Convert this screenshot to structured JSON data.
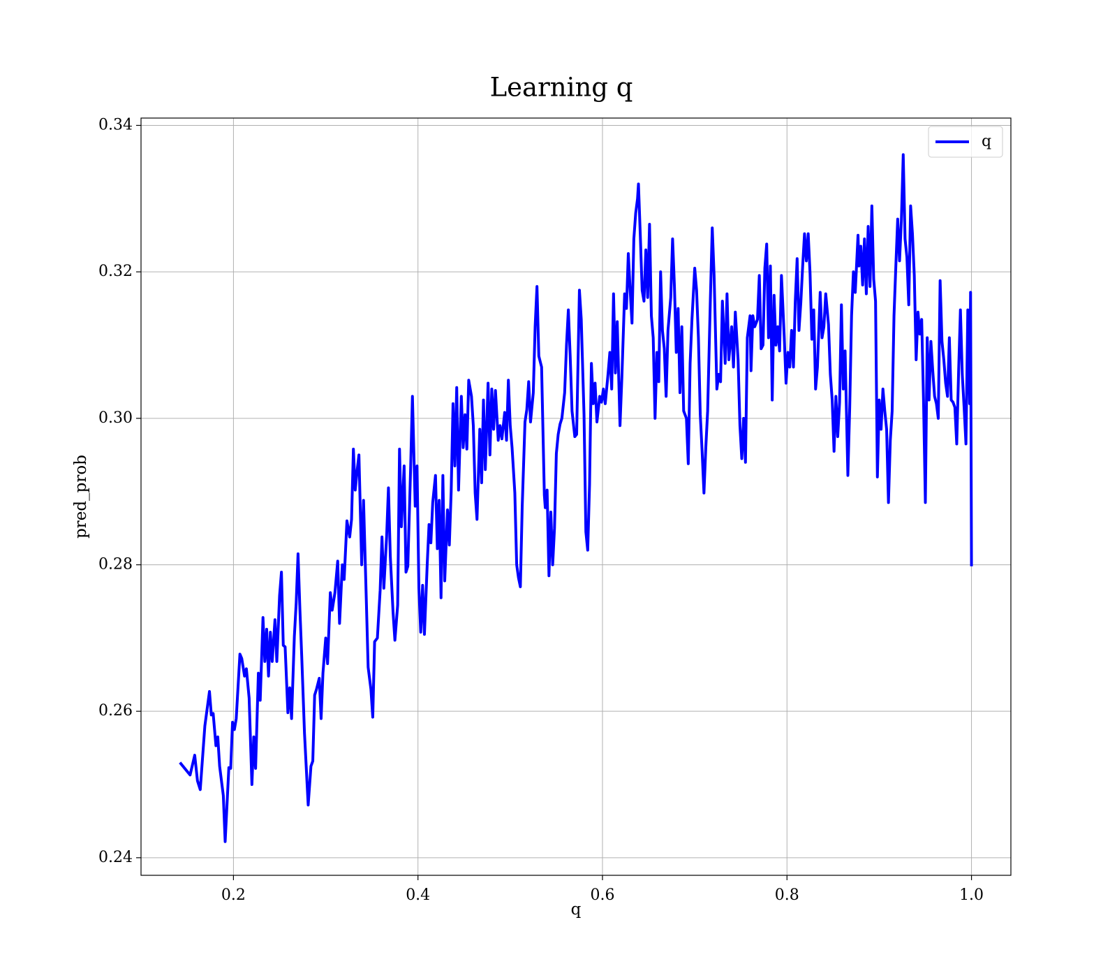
{
  "chart_data": {
    "type": "line",
    "title": "Learning q",
    "xlabel": "q",
    "ylabel": "pred_prob",
    "xlim": [
      0.0998,
      1.0427
    ],
    "ylim": [
      0.2376,
      0.341
    ],
    "xticks": [
      0.2,
      0.4,
      0.6,
      0.8,
      {
        "value": 1.0,
        "label": "1.0"
      }
    ],
    "yticks": [
      0.24,
      0.26,
      0.28,
      {
        "value": 0.3,
        "label": "0.30"
      },
      0.32,
      0.34
    ],
    "grid": true,
    "legend": "upper right",
    "x": [
      0.142,
      0.153,
      0.158,
      0.161,
      0.164,
      0.169,
      0.174,
      0.176,
      0.178,
      0.181,
      0.183,
      0.185,
      0.189,
      0.191,
      0.195,
      0.197,
      0.199,
      0.201,
      0.203,
      0.207,
      0.209,
      0.212,
      0.214,
      0.217,
      0.22,
      0.222,
      0.224,
      0.227,
      0.229,
      0.232,
      0.234,
      0.236,
      0.238,
      0.24,
      0.242,
      0.245,
      0.247,
      0.25,
      0.252,
      0.254,
      0.256,
      0.259,
      0.261,
      0.263,
      0.266,
      0.268,
      0.27,
      0.272,
      0.274,
      0.277,
      0.281,
      0.284,
      0.286,
      0.288,
      0.29,
      0.293,
      0.295,
      0.297,
      0.3,
      0.302,
      0.305,
      0.307,
      0.31,
      0.313,
      0.315,
      0.318,
      0.32,
      0.323,
      0.326,
      0.328,
      0.33,
      0.332,
      0.334,
      0.336,
      0.339,
      0.341,
      0.344,
      0.346,
      0.349,
      0.351,
      0.353,
      0.356,
      0.359,
      0.361,
      0.363,
      0.366,
      0.368,
      0.37,
      0.373,
      0.375,
      0.378,
      0.38,
      0.382,
      0.385,
      0.387,
      0.389,
      0.392,
      0.394,
      0.397,
      0.399,
      0.401,
      0.403,
      0.405,
      0.407,
      0.41,
      0.412,
      0.414,
      0.416,
      0.419,
      0.421,
      0.423,
      0.425,
      0.427,
      0.429,
      0.432,
      0.434,
      0.436,
      0.438,
      0.44,
      0.442,
      0.444,
      0.447,
      0.449,
      0.451,
      0.453,
      0.455,
      0.458,
      0.46,
      0.462,
      0.464,
      0.467,
      0.469,
      0.471,
      0.473,
      0.476,
      0.478,
      0.48,
      0.482,
      0.484,
      0.487,
      0.489,
      0.491,
      0.494,
      0.496,
      0.498,
      0.5,
      0.502,
      0.505,
      0.507,
      0.509,
      0.511,
      0.513,
      0.516,
      0.518,
      0.52,
      0.522,
      0.525,
      0.527,
      0.529,
      0.531,
      0.534,
      0.537,
      0.538,
      0.54,
      0.542,
      0.544,
      0.546,
      0.548,
      0.55,
      0.552,
      0.554,
      0.556,
      0.559,
      0.561,
      0.563,
      0.565,
      0.567,
      0.57,
      0.572,
      0.575,
      0.577,
      0.58,
      0.582,
      0.584,
      0.586,
      0.588,
      0.59,
      0.592,
      0.594,
      0.597,
      0.599,
      0.601,
      0.603,
      0.606,
      0.608,
      0.61,
      0.612,
      0.614,
      0.616,
      0.619,
      0.621,
      0.624,
      0.626,
      0.628,
      0.63,
      0.632,
      0.634,
      0.636,
      0.638,
      0.639,
      0.641,
      0.643,
      0.645,
      0.647,
      0.649,
      0.651,
      0.653,
      0.655,
      0.657,
      0.659,
      0.661,
      0.663,
      0.665,
      0.667,
      0.669,
      0.671,
      0.674,
      0.676,
      0.678,
      0.68,
      0.682,
      0.684,
      0.686,
      0.688,
      0.691,
      0.693,
      0.695,
      0.697,
      0.7,
      0.702,
      0.704,
      0.706,
      0.708,
      0.71,
      0.712,
      0.714,
      0.717,
      0.719,
      0.721,
      0.724,
      0.726,
      0.728,
      0.73,
      0.733,
      0.735,
      0.737,
      0.74,
      0.742,
      0.744,
      0.747,
      0.749,
      0.751,
      0.753,
      0.755,
      0.757,
      0.76,
      0.761,
      0.763,
      0.765,
      0.768,
      0.77,
      0.772,
      0.774,
      0.776,
      0.778,
      0.78,
      0.782,
      0.784,
      0.786,
      0.788,
      0.79,
      0.792,
      0.794,
      0.797,
      0.799,
      0.801,
      0.803,
      0.805,
      0.807,
      0.809,
      0.811,
      0.813,
      0.815,
      0.817,
      0.819,
      0.821,
      0.823,
      0.825,
      0.827,
      0.829,
      0.831,
      0.833,
      0.836,
      0.838,
      0.84,
      0.842,
      0.845,
      0.847,
      0.849,
      0.851,
      0.853,
      0.855,
      0.857,
      0.859,
      0.861,
      0.863,
      0.866,
      0.868,
      0.87,
      0.872,
      0.874,
      0.877,
      0.878,
      0.88,
      0.882,
      0.884,
      0.886,
      0.888,
      0.89,
      0.892,
      0.894,
      0.896,
      0.898,
      0.9,
      0.902,
      0.904,
      0.906,
      0.908,
      0.91,
      0.912,
      0.914,
      0.916,
      0.918,
      0.92,
      0.922,
      0.924,
      0.926,
      0.928,
      0.93,
      0.932,
      0.934,
      0.936,
      0.938,
      0.94,
      0.942,
      0.944,
      0.946,
      0.948,
      0.95,
      0.952,
      0.954,
      0.956,
      0.958,
      0.96,
      0.962,
      0.964,
      0.966,
      0.968,
      0.97,
      0.972,
      0.974,
      0.976,
      0.978,
      0.98,
      0.982,
      0.984,
      0.986,
      0.988,
      0.99,
      0.992,
      0.994,
      0.996,
      0.998,
      0.999,
      1.0
    ],
    "series": [
      {
        "name": "q",
        "color": "#0000ff",
        "values": [
          0.253,
          0.2513,
          0.254,
          0.2505,
          0.2493,
          0.258,
          0.2627,
          0.2595,
          0.2597,
          0.2553,
          0.2565,
          0.2525,
          0.2485,
          0.2422,
          0.2523,
          0.2522,
          0.2585,
          0.2575,
          0.259,
          0.2678,
          0.2672,
          0.2648,
          0.2658,
          0.2618,
          0.25,
          0.2565,
          0.2522,
          0.2652,
          0.2615,
          0.2728,
          0.2668,
          0.2712,
          0.2648,
          0.2708,
          0.2668,
          0.2725,
          0.2668,
          0.2758,
          0.279,
          0.269,
          0.2688,
          0.2598,
          0.2632,
          0.259,
          0.2702,
          0.2748,
          0.2815,
          0.274,
          0.2675,
          0.257,
          0.2472,
          0.2525,
          0.2532,
          0.2622,
          0.263,
          0.2645,
          0.259,
          0.2652,
          0.27,
          0.2665,
          0.2762,
          0.2738,
          0.2762,
          0.2805,
          0.272,
          0.28,
          0.278,
          0.286,
          0.2838,
          0.2862,
          0.2958,
          0.2902,
          0.2928,
          0.295,
          0.28,
          0.2888,
          0.2752,
          0.266,
          0.263,
          0.2592,
          0.2695,
          0.27,
          0.2765,
          0.2838,
          0.2768,
          0.2838,
          0.2905,
          0.2812,
          0.2735,
          0.2697,
          0.2745,
          0.2958,
          0.2852,
          0.2935,
          0.279,
          0.2798,
          0.293,
          0.303,
          0.288,
          0.2935,
          0.2768,
          0.2708,
          0.2772,
          0.2705,
          0.28,
          0.2855,
          0.283,
          0.2885,
          0.2922,
          0.2822,
          0.2888,
          0.2755,
          0.2922,
          0.2778,
          0.2875,
          0.2827,
          0.29,
          0.302,
          0.2935,
          0.3042,
          0.2902,
          0.303,
          0.296,
          0.3005,
          0.2958,
          0.3052,
          0.303,
          0.299,
          0.2898,
          0.2862,
          0.2985,
          0.2912,
          0.3025,
          0.293,
          0.3048,
          0.295,
          0.304,
          0.2985,
          0.3038,
          0.297,
          0.299,
          0.2972,
          0.3008,
          0.297,
          0.3052,
          0.299,
          0.296,
          0.2898,
          0.28,
          0.2782,
          0.277,
          0.288,
          0.2995,
          0.3012,
          0.305,
          0.2995,
          0.3035,
          0.3125,
          0.318,
          0.3085,
          0.307,
          0.2895,
          0.2878,
          0.2902,
          0.2785,
          0.2872,
          0.28,
          0.285,
          0.2952,
          0.2978,
          0.2992,
          0.3,
          0.3035,
          0.31,
          0.3148,
          0.3085,
          0.301,
          0.2975,
          0.2978,
          0.3175,
          0.3135,
          0.3005,
          0.2845,
          0.282,
          0.291,
          0.3075,
          0.302,
          0.3048,
          0.2995,
          0.303,
          0.3022,
          0.304,
          0.302,
          0.306,
          0.309,
          0.304,
          0.317,
          0.3062,
          0.3132,
          0.299,
          0.3055,
          0.317,
          0.315,
          0.3225,
          0.3175,
          0.313,
          0.3245,
          0.328,
          0.33,
          0.332,
          0.325,
          0.3175,
          0.316,
          0.323,
          0.3165,
          0.3265,
          0.314,
          0.311,
          0.3,
          0.309,
          0.305,
          0.32,
          0.312,
          0.3095,
          0.303,
          0.312,
          0.3165,
          0.3245,
          0.318,
          0.309,
          0.315,
          0.3035,
          0.3125,
          0.301,
          0.3,
          0.2938,
          0.3075,
          0.3135,
          0.3205,
          0.3175,
          0.311,
          0.3005,
          0.2955,
          0.2898,
          0.296,
          0.301,
          0.3165,
          0.326,
          0.3195,
          0.304,
          0.306,
          0.305,
          0.316,
          0.3075,
          0.317,
          0.308,
          0.3125,
          0.307,
          0.3145,
          0.308,
          0.299,
          0.2945,
          0.3,
          0.294,
          0.311,
          0.314,
          0.3065,
          0.314,
          0.3125,
          0.3135,
          0.3195,
          0.3095,
          0.31,
          0.3205,
          0.3238,
          0.311,
          0.3208,
          0.3025,
          0.3168,
          0.31,
          0.3125,
          0.3092,
          0.3195,
          0.3112,
          0.3048,
          0.309,
          0.307,
          0.312,
          0.307,
          0.316,
          0.3218,
          0.312,
          0.3158,
          0.3208,
          0.3252,
          0.3215,
          0.3252,
          0.3198,
          0.3108,
          0.3148,
          0.304,
          0.307,
          0.3172,
          0.311,
          0.3125,
          0.317,
          0.3128,
          0.306,
          0.3025,
          0.2955,
          0.303,
          0.2975,
          0.3022,
          0.3155,
          0.304,
          0.3092,
          0.2922,
          0.3015,
          0.314,
          0.32,
          0.3172,
          0.325,
          0.3208,
          0.3235,
          0.3182,
          0.3245,
          0.317,
          0.3262,
          0.318,
          0.329,
          0.319,
          0.316,
          0.292,
          0.3025,
          0.2985,
          0.304,
          0.301,
          0.2985,
          0.2885,
          0.297,
          0.301,
          0.314,
          0.3208,
          0.3272,
          0.3215,
          0.327,
          0.336,
          0.3245,
          0.322,
          0.3155,
          0.329,
          0.3252,
          0.3195,
          0.308,
          0.3145,
          0.3115,
          0.3135,
          0.3025,
          0.2885,
          0.311,
          0.3025,
          0.3105,
          0.3065,
          0.303,
          0.302,
          0.3,
          0.3188,
          0.3105,
          0.308,
          0.3048,
          0.303,
          0.311,
          0.3025,
          0.3022,
          0.3015,
          0.2965,
          0.3062,
          0.3148,
          0.306,
          0.3015,
          0.2965,
          0.3148,
          0.302,
          0.3172,
          0.2798
        ]
      }
    ]
  }
}
